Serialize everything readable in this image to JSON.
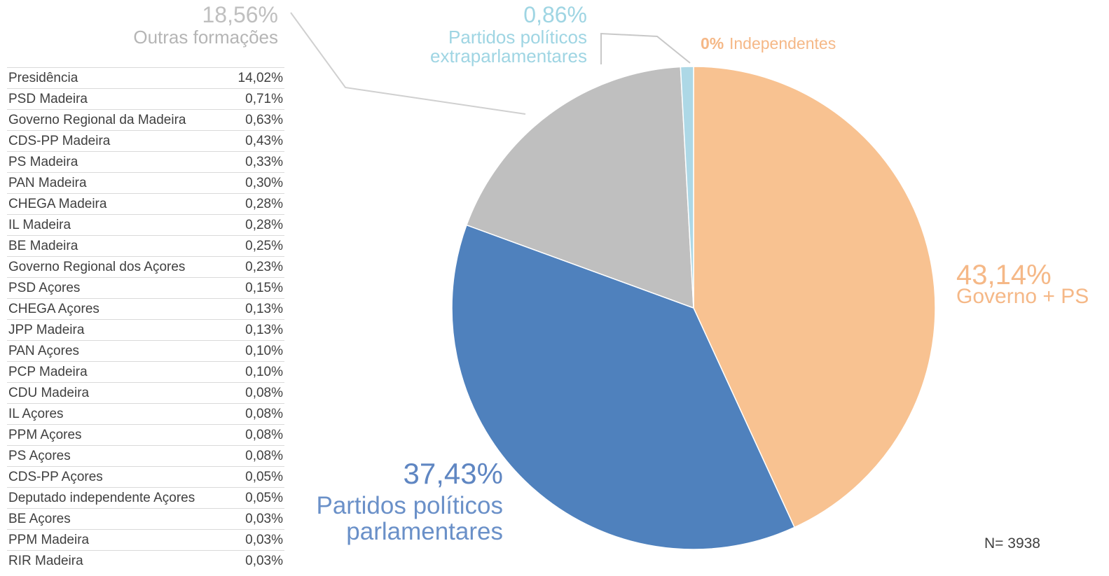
{
  "chart_data": {
    "type": "pie",
    "categories": [
      "Independentes",
      "Governo + PS",
      "Partidos políticos parlamentares",
      "Outras formações",
      "Partidos políticos extraparlamentares"
    ],
    "values": [
      0,
      43.14,
      37.43,
      18.56,
      0.86
    ],
    "value_labels": [
      "0%",
      "43,14%",
      "37,43%",
      "18,56%",
      "0,86%"
    ],
    "colors": [
      "#f8c291",
      "#f8c291",
      "#4f81bd",
      "#bfbfbf",
      "#add8e6"
    ],
    "annotation": "N= 3938"
  },
  "table": {
    "rows": [
      [
        "Presidência",
        "14,02%"
      ],
      [
        "PSD Madeira",
        "0,71%"
      ],
      [
        "Governo Regional da Madeira",
        "0,63%"
      ],
      [
        "CDS-PP Madeira",
        "0,43%"
      ],
      [
        "PS Madeira",
        "0,33%"
      ],
      [
        "PAN Madeira",
        "0,30%"
      ],
      [
        "CHEGA Madeira",
        "0,28%"
      ],
      [
        "IL Madeira",
        "0,28%"
      ],
      [
        "BE Madeira",
        "0,25%"
      ],
      [
        "Governo Regional dos Açores",
        "0,23%"
      ],
      [
        "PSD Açores",
        "0,15%"
      ],
      [
        "CHEGA Açores",
        "0,13%"
      ],
      [
        "JPP Madeira",
        "0,13%"
      ],
      [
        "PAN Açores",
        "0,10%"
      ],
      [
        "PCP Madeira",
        "0,10%"
      ],
      [
        "CDU Madeira",
        "0,08%"
      ],
      [
        "IL Açores",
        "0,08%"
      ],
      [
        "PPM Açores",
        "0,08%"
      ],
      [
        "PS Açores",
        "0,08%"
      ],
      [
        "CDS-PP Açores",
        "0,05%"
      ],
      [
        "Deputado independente Açores",
        "0,05%"
      ],
      [
        "BE Açores",
        "0,03%"
      ],
      [
        "PPM Madeira",
        "0,03%"
      ],
      [
        "RIR Madeira",
        "0,03%"
      ]
    ]
  }
}
